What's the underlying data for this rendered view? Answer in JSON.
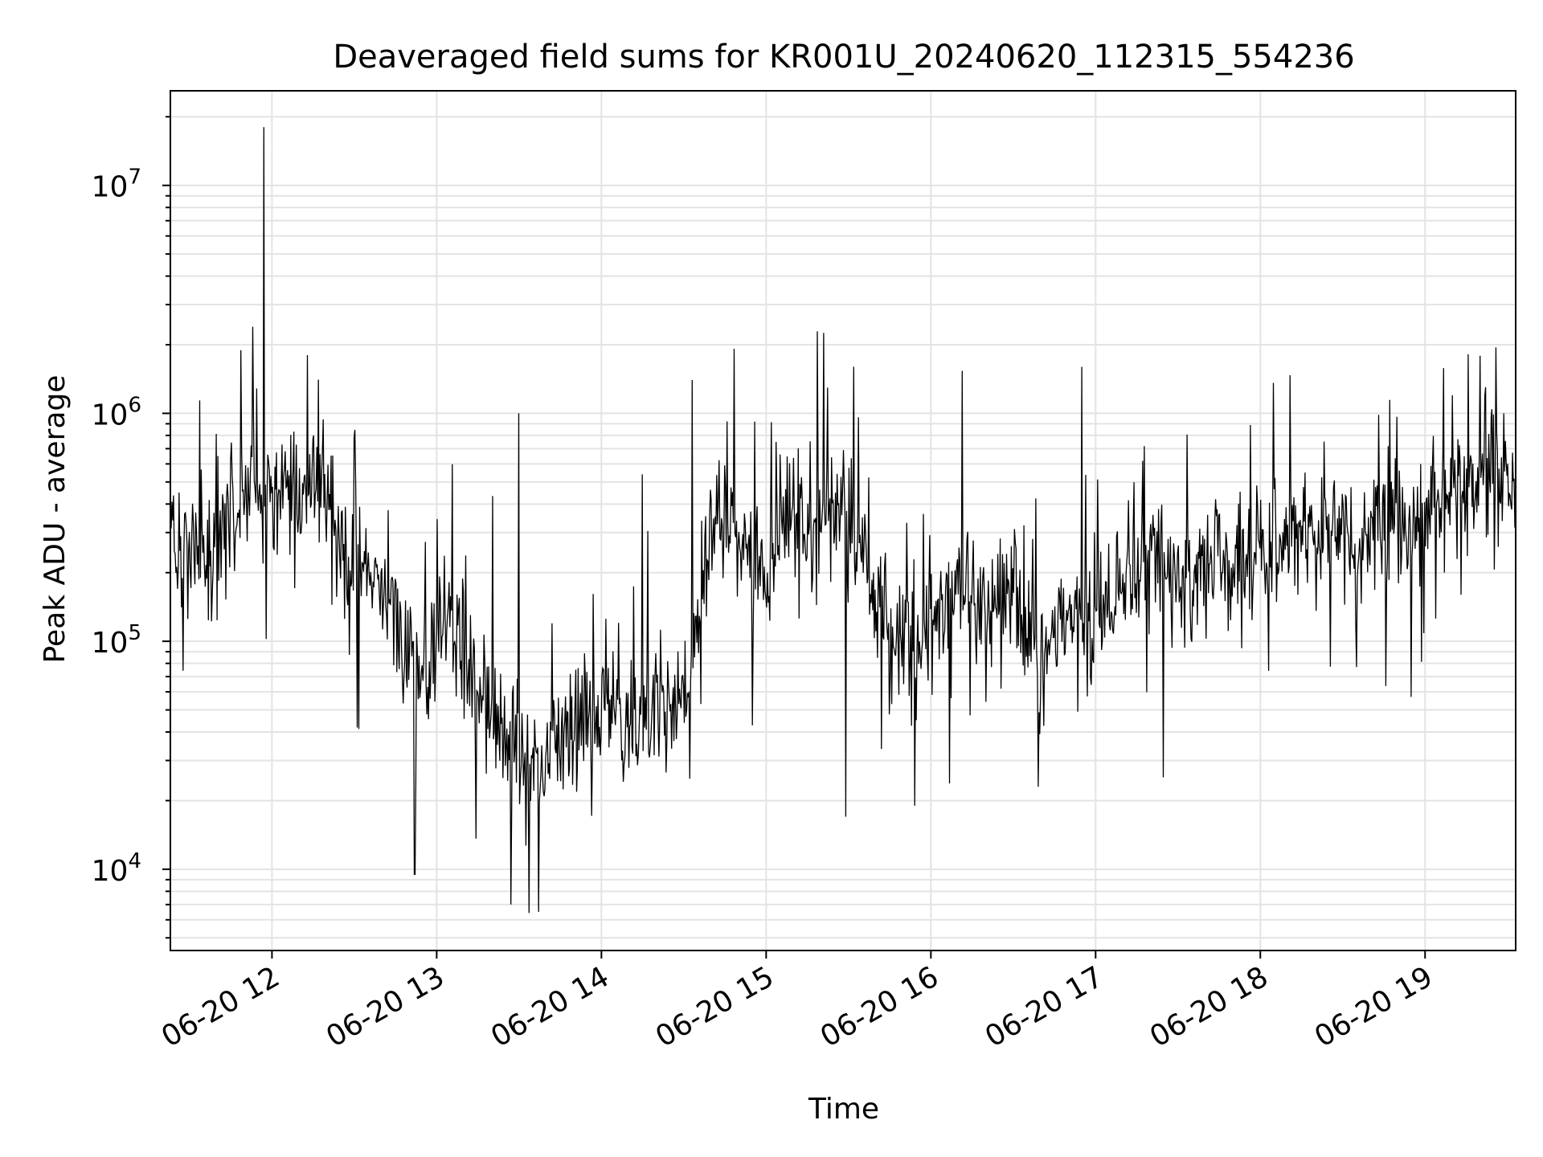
{
  "chart_data": {
    "type": "line",
    "title": "Deaveraged field sums for KR001U_20240620_112315_554236",
    "xlabel": "Time",
    "ylabel": "Peak ADU - average",
    "yscale": "log",
    "xlim": [
      "2024-06-20 11:23",
      "2024-06-20 19:33"
    ],
    "ylim": [
      4400,
      26000000
    ],
    "grid": true,
    "x_tick_labels": [
      "06-20 12",
      "06-20 13",
      "06-20 14",
      "06-20 15",
      "06-20 16",
      "06-20 17",
      "06-20 18",
      "06-20 19"
    ],
    "y_tick_labels": [
      {
        "value": 10000,
        "base": "10",
        "exp": "4"
      },
      {
        "value": 100000,
        "base": "10",
        "exp": "5"
      },
      {
        "value": 1000000,
        "base": "10",
        "exp": "6"
      },
      {
        "value": 10000000,
        "base": "10",
        "exp": "7"
      }
    ],
    "line_color": "#000000",
    "series": [
      {
        "points": [
          [
            "2024-06-20 11:23",
            300000
          ],
          [
            "2024-06-20 11:30",
            250000
          ],
          [
            "2024-06-20 11:37",
            260000
          ],
          [
            "2024-06-20 11:43",
            350000
          ],
          [
            "2024-06-20 11:50",
            420000
          ],
          [
            "2024-06-20 11:57",
            550000
          ],
          [
            "2024-06-20 12:03",
            450000
          ],
          [
            "2024-06-20 12:10",
            500000
          ],
          [
            "2024-06-20 12:17",
            480000
          ],
          [
            "2024-06-20 12:23",
            300000
          ],
          [
            "2024-06-20 12:30",
            250000
          ],
          [
            "2024-06-20 12:37",
            180000
          ],
          [
            "2024-06-20 12:43",
            120000
          ],
          [
            "2024-06-20 12:50",
            90000
          ],
          [
            "2024-06-20 12:57",
            65000
          ],
          [
            "2024-06-20 13:03",
            150000
          ],
          [
            "2024-06-20 13:10",
            80000
          ],
          [
            "2024-06-20 13:17",
            55000
          ],
          [
            "2024-06-20 13:23",
            45000
          ],
          [
            "2024-06-20 13:30",
            35000
          ],
          [
            "2024-06-20 13:37",
            30000
          ],
          [
            "2024-06-20 13:43",
            38000
          ],
          [
            "2024-06-20 13:50",
            40000
          ],
          [
            "2024-06-20 13:57",
            45000
          ],
          [
            "2024-06-20 14:03",
            50000
          ],
          [
            "2024-06-20 14:10",
            48000
          ],
          [
            "2024-06-20 14:17",
            45000
          ],
          [
            "2024-06-20 14:23",
            50000
          ],
          [
            "2024-06-20 14:30",
            55000
          ],
          [
            "2024-06-20 14:37",
            150000
          ],
          [
            "2024-06-20 14:43",
            400000
          ],
          [
            "2024-06-20 14:50",
            250000
          ],
          [
            "2024-06-20 14:57",
            200000
          ],
          [
            "2024-06-20 15:03",
            250000
          ],
          [
            "2024-06-20 15:10",
            350000
          ],
          [
            "2024-06-20 15:17",
            350000
          ],
          [
            "2024-06-20 15:23",
            400000
          ],
          [
            "2024-06-20 15:30",
            350000
          ],
          [
            "2024-06-20 15:37",
            250000
          ],
          [
            "2024-06-20 15:43",
            130000
          ],
          [
            "2024-06-20 15:50",
            100000
          ],
          [
            "2024-06-20 15:57",
            110000
          ],
          [
            "2024-06-20 16:03",
            130000
          ],
          [
            "2024-06-20 16:10",
            180000
          ],
          [
            "2024-06-20 16:17",
            150000
          ],
          [
            "2024-06-20 16:23",
            140000
          ],
          [
            "2024-06-20 16:30",
            130000
          ],
          [
            "2024-06-20 16:37",
            120000
          ],
          [
            "2024-06-20 16:43",
            100000
          ],
          [
            "2024-06-20 16:50",
            130000
          ],
          [
            "2024-06-20 16:57",
            130000
          ],
          [
            "2024-06-20 17:03",
            140000
          ],
          [
            "2024-06-20 17:10",
            200000
          ],
          [
            "2024-06-20 17:17",
            230000
          ],
          [
            "2024-06-20 17:23",
            230000
          ],
          [
            "2024-06-20 17:30",
            200000
          ],
          [
            "2024-06-20 17:37",
            200000
          ],
          [
            "2024-06-20 17:43",
            220000
          ],
          [
            "2024-06-20 17:50",
            200000
          ],
          [
            "2024-06-20 17:57",
            220000
          ],
          [
            "2024-06-20 18:03",
            250000
          ],
          [
            "2024-06-20 18:10",
            270000
          ],
          [
            "2024-06-20 18:17",
            300000
          ],
          [
            "2024-06-20 18:23",
            300000
          ],
          [
            "2024-06-20 18:30",
            280000
          ],
          [
            "2024-06-20 18:37",
            300000
          ],
          [
            "2024-06-20 18:43",
            320000
          ],
          [
            "2024-06-20 18:50",
            330000
          ],
          [
            "2024-06-20 18:57",
            300000
          ],
          [
            "2024-06-20 19:03",
            350000
          ],
          [
            "2024-06-20 19:10",
            450000
          ],
          [
            "2024-06-20 19:17",
            500000
          ],
          [
            "2024-06-20 19:23",
            550000
          ],
          [
            "2024-06-20 19:30",
            520000
          ],
          [
            "2024-06-20 19:33",
            500000
          ]
        ],
        "spikes": [
          [
            "2024-06-20 11:57",
            18000000
          ],
          [
            "2024-06-20 11:53",
            2400000
          ],
          [
            "2024-06-20 12:13",
            1800000
          ],
          [
            "2024-06-20 13:30",
            1000000
          ],
          [
            "2024-06-20 13:37",
            6500
          ],
          [
            "2024-06-20 13:27",
            7000
          ],
          [
            "2024-06-20 12:52",
            9500
          ],
          [
            "2024-06-20 15:29",
            17000
          ],
          [
            "2024-06-20 15:32",
            1600000
          ],
          [
            "2024-06-20 15:54",
            19000
          ],
          [
            "2024-06-20 16:55",
            1600000
          ],
          [
            "2024-06-20 16:39",
            23000
          ],
          [
            "2024-06-20 19:10",
            1200000
          ],
          [
            "2024-06-20 18:55",
            57000
          ],
          [
            "2024-06-20 14:15",
            540000
          ],
          [
            "2024-06-20 14:33",
            1400000
          ]
        ]
      }
    ]
  }
}
